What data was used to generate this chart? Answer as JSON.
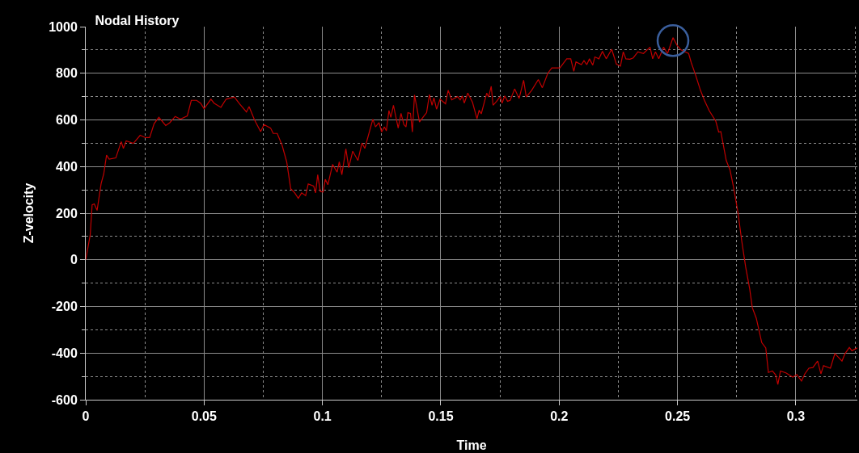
{
  "chart_data": {
    "type": "line",
    "title": "Nodal History",
    "xlabel": "Time",
    "ylabel": "Z-velocity",
    "xlim": [
      0,
      0.326
    ],
    "ylim": [
      -600,
      1000
    ],
    "xticks": [
      0,
      {
        "value": 0.025,
        "label": null
      },
      0.05,
      {
        "value": 0.075,
        "label": null
      },
      0.1,
      {
        "value": 0.125,
        "label": null
      },
      0.15,
      {
        "value": 0.175,
        "label": null
      },
      0.2,
      {
        "value": 0.225,
        "label": null
      },
      0.25,
      {
        "value": 0.275,
        "label": null
      },
      0.3,
      {
        "value": 0.325,
        "label": null
      }
    ],
    "yticks": [
      -600,
      {
        "value": -500,
        "label": null
      },
      -400,
      {
        "value": -300,
        "label": null
      },
      -200,
      {
        "value": -100,
        "label": null
      },
      0,
      {
        "value": 100,
        "label": null
      },
      200,
      {
        "value": 300,
        "label": null
      },
      400,
      {
        "value": 500,
        "label": null
      },
      600,
      {
        "value": 700,
        "label": null
      },
      800,
      {
        "value": 900,
        "label": null
      },
      1000
    ],
    "grid": true,
    "marker": "none",
    "line_style": "solid",
    "series": [
      {
        "color": "#c00000",
        "x": [
          0,
          0.0019,
          0.0027,
          0.0036,
          0.0048,
          0.0065,
          0.0076,
          0.0088,
          0.0099,
          0.0127,
          0.015,
          0.0159,
          0.0171,
          0.0201,
          0.023,
          0.0252,
          0.027,
          0.0289,
          0.0309,
          0.0338,
          0.0355,
          0.0378,
          0.04,
          0.0429,
          0.0446,
          0.0468,
          0.0485,
          0.05,
          0.0529,
          0.0542,
          0.0571,
          0.0593,
          0.0628,
          0.065,
          0.0679,
          0.069,
          0.0713,
          0.0739,
          0.0753,
          0.0781,
          0.0792,
          0.0809,
          0.083,
          0.0849,
          0.0866,
          0.0883,
          0.0898,
          0.0912,
          0.0929,
          0.094,
          0.0963,
          0.0971,
          0.098,
          0.0991,
          0.1003,
          0.1012,
          0.1023,
          0.1043,
          0.1062,
          0.1071,
          0.1082,
          0.1099,
          0.1111,
          0.1128,
          0.115,
          0.1167,
          0.1179,
          0.1213,
          0.1224,
          0.1239,
          0.125,
          0.1262,
          0.127,
          0.1281,
          0.1289,
          0.13,
          0.132,
          0.1332,
          0.1344,
          0.1353,
          0.1361,
          0.1372,
          0.138,
          0.1389,
          0.141,
          0.1429,
          0.144,
          0.1452,
          0.1463,
          0.1471,
          0.1482,
          0.1497,
          0.152,
          0.1531,
          0.1546,
          0.1571,
          0.1582,
          0.1591,
          0.1599,
          0.1614,
          0.1634,
          0.1653,
          0.1662,
          0.1671,
          0.1694,
          0.1702,
          0.1713,
          0.1721,
          0.1736,
          0.1751,
          0.1759,
          0.177,
          0.1782,
          0.1793,
          0.1812,
          0.1831,
          0.185,
          0.1861,
          0.1884,
          0.1912,
          0.1929,
          0.1952,
          0.1969,
          0.2003,
          0.2032,
          0.2049,
          0.2062,
          0.2071,
          0.2094,
          0.2105,
          0.2117,
          0.2128,
          0.2142,
          0.2151,
          0.2168,
          0.2183,
          0.2199,
          0.2222,
          0.2242,
          0.2259,
          0.2271,
          0.2282,
          0.2299,
          0.2313,
          0.2333,
          0.2356,
          0.2384,
          0.2395,
          0.2407,
          0.2421,
          0.2441,
          0.2458,
          0.2481,
          0.2498,
          0.2515,
          0.2547,
          0.2558,
          0.2577,
          0.2597,
          0.2615,
          0.2634,
          0.2662,
          0.2674,
          0.2683,
          0.2706,
          0.2722,
          0.2736,
          0.2756,
          0.2771,
          0.2788,
          0.2805,
          0.2816,
          0.2833,
          0.2856,
          0.2873,
          0.2884,
          0.2901,
          0.2915,
          0.2924,
          0.2935,
          0.2958,
          0.2987,
          0.3004,
          0.3024,
          0.3038,
          0.3055,
          0.3072,
          0.3092,
          0.3106,
          0.3117,
          0.3146,
          0.3165,
          0.3195,
          0.3208,
          0.3226,
          0.3237,
          0.3248,
          0.3259
        ],
        "values": [
          0,
          108,
          236,
          240,
          212,
          327,
          368,
          449,
          432,
          437,
          507,
          478,
          510,
          499,
          534,
          524,
          524,
          584,
          611,
          576,
          588,
          615,
          603,
          617,
          684,
          684,
          672,
          648,
          689,
          672,
          654,
          689,
          698,
          669,
          634,
          657,
          600,
          550,
          580,
          565,
          542,
          542,
          490,
          420,
          305,
          287,
          264,
          287,
          275,
          325,
          316,
          287,
          365,
          293,
          291,
          345,
          322,
          409,
          376,
          420,
          365,
          476,
          395,
          466,
          426,
          501,
          478,
          603,
          570,
          588,
          548,
          570,
          553,
          640,
          611,
          663,
          565,
          628,
          580,
          570,
          631,
          628,
          548,
          707,
          591,
          617,
          631,
          709,
          663,
          695,
          646,
          689,
          669,
          727,
          686,
          700,
          686,
          703,
          672,
          715,
          675,
          605,
          642,
          626,
          715,
          698,
          744,
          663,
          680,
          700,
          672,
          703,
          680,
          684,
          733,
          692,
          770,
          698,
          727,
          773,
          738,
          800,
          823,
          823,
          862,
          862,
          808,
          849,
          837,
          854,
          837,
          862,
          835,
          870,
          862,
          894,
          862,
          903,
          839,
          831,
          892,
          862,
          860,
          866,
          892,
          885,
          912,
          862,
          892,
          862,
          912,
          885,
          953,
          920,
          900,
          885,
          846,
          791,
          727,
          681,
          640,
          594,
          548,
          550,
          426,
          385,
          316,
          200,
          84,
          -31,
          -124,
          -205,
          -251,
          -355,
          -378,
          -483,
          -477,
          -494,
          -535,
          -477,
          -485,
          -503,
          -492,
          -520,
          -489,
          -465,
          -462,
          -434,
          -489,
          -454,
          -465,
          -402,
          -434,
          -402,
          -376,
          -390,
          -384,
          -378
        ]
      },
      {
        "type": "scatter",
        "marker": "circle",
        "color": "#3a5e9c",
        "x": [
          0.2481
        ],
        "values": [
          940
        ]
      }
    ]
  }
}
